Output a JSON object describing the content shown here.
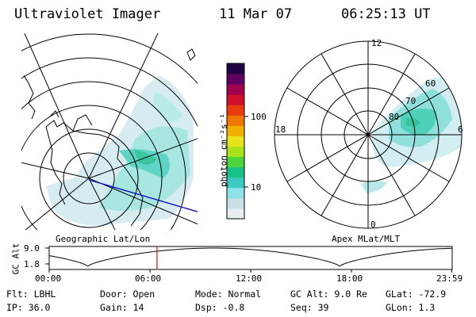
{
  "header": {
    "instrument": "Ultraviolet Imager",
    "date": "11 Mar 07",
    "time": "06:25:13 UT"
  },
  "left_map": {
    "label": "Geographic Lat/Lon"
  },
  "right_map": {
    "label": "Apex MLat/MLT",
    "mlt_labels": {
      "top": "12",
      "left": "18",
      "right": "6",
      "bottom": "0"
    },
    "lat_labels": [
      "60",
      "70",
      "80"
    ]
  },
  "colorbar": {
    "unit_label": "photon cm⁻²s⁻¹",
    "ticks": [
      "100",
      "10"
    ],
    "scale": "log",
    "colors": [
      "#e8eef0",
      "#c8dfe6",
      "#8fe3e8",
      "#3cc9c0",
      "#18c08a",
      "#4cd43c",
      "#a8e21c",
      "#e8e21c",
      "#f0b000",
      "#f07800",
      "#e83c10",
      "#d0102c",
      "#a0004c",
      "#600060",
      "#200040"
    ]
  },
  "orbit_plot": {
    "ylabel": "GC Alt",
    "y_ticks": [
      "9.0",
      "1.8"
    ],
    "x_ticks": [
      "00:00",
      "06:00",
      "12:00",
      "18:00",
      "23:59"
    ],
    "current_time_hours": 6.42,
    "ylim": [
      1.8,
      9.0
    ]
  },
  "info": {
    "filter": "Flt: LBHL",
    "door": "Door: Open",
    "mode": "Mode: Normal",
    "gc_alt": "GC Alt: 9.0 Re",
    "glat": "GLat: -72.9",
    "ip": "IP: 36.0",
    "gain": "Gain: 14",
    "dsp": "Dsp:   -0.8",
    "seq": "Seq: 39",
    "glon": "GLon:   1.3"
  }
}
